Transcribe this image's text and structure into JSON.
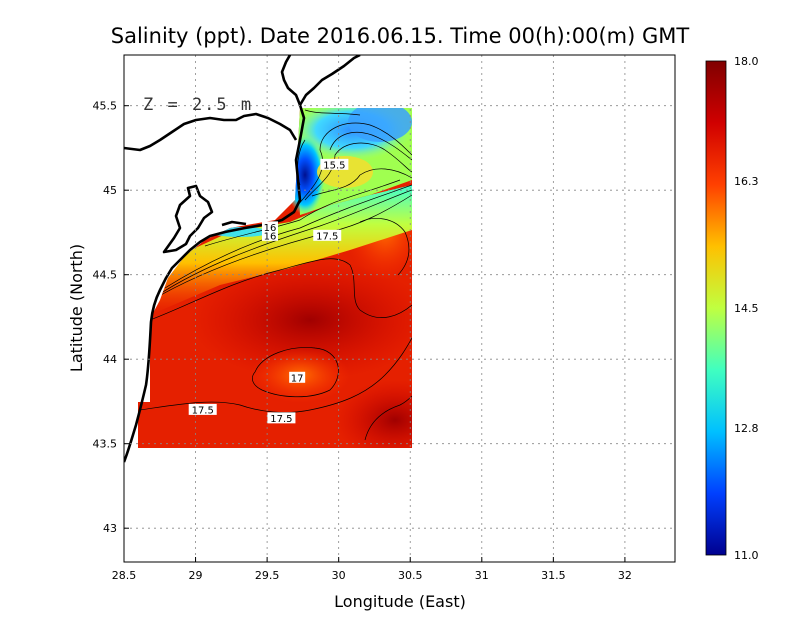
{
  "title": "Salinity (ppt). Date 2016.06.15. Time 00(h):00(m) GMT",
  "depth_label": "Z = 2.5 m",
  "x_axis": {
    "label": "Longitude (East)",
    "ticks": [
      "28.5",
      "29",
      "29.5",
      "30",
      "30.5",
      "31",
      "31.5",
      "32"
    ],
    "range": [
      28.5,
      32.35
    ]
  },
  "y_axis": {
    "label": "Latitude (North)",
    "ticks": [
      "43",
      "43.5",
      "44",
      "44.5",
      "45",
      "45.5"
    ],
    "range": [
      42.8,
      45.8
    ]
  },
  "colorbar": {
    "labels": [
      "18.0",
      "16.3",
      "14.5",
      "12.8",
      "11.0"
    ],
    "min": 11.0,
    "max": 18.0,
    "stops": [
      "#00008f",
      "#0040ff",
      "#00c0ff",
      "#40ffc0",
      "#c0ff40",
      "#ffc000",
      "#ff4000",
      "#d00000",
      "#800000"
    ]
  },
  "contour_labels": [
    {
      "text": "15.5",
      "lon": 29.97,
      "lat": 45.15
    },
    {
      "text": "16",
      "lon": 29.52,
      "lat": 44.73
    },
    {
      "text": "16",
      "lon": 29.52,
      "lat": 44.78
    },
    {
      "text": "17.5",
      "lon": 29.92,
      "lat": 44.73
    },
    {
      "text": "17",
      "lon": 29.71,
      "lat": 43.89
    },
    {
      "text": "17.5",
      "lon": 29.05,
      "lat": 43.7
    },
    {
      "text": "17.5",
      "lon": 29.6,
      "lat": 43.65
    }
  ],
  "grid": true
}
